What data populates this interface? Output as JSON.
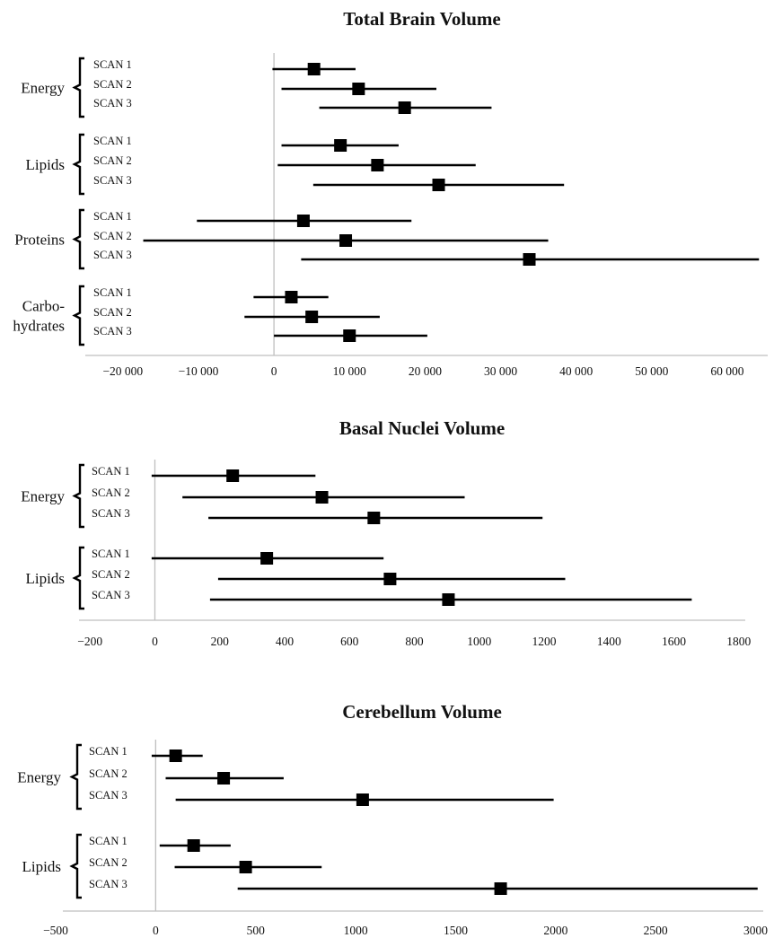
{
  "chart_data": [
    {
      "type": "forest",
      "title": "Total Brain Volume",
      "xlim": [
        -22000,
        65000
      ],
      "ticks": [
        -20000,
        -10000,
        0,
        10000,
        20000,
        30000,
        40000,
        50000,
        60000
      ],
      "tick_labels": [
        "−20 000",
        "−10 000",
        "0",
        "10 000",
        "20 000",
        "30 000",
        "40 000",
        "50 000",
        "60 000"
      ],
      "groups": [
        {
          "label_lines": [
            "Energy"
          ],
          "rows": [
            {
              "label": "SCAN 1",
              "estimate": 5300,
              "lower": -200,
              "upper": 10800
            },
            {
              "label": "SCAN 2",
              "estimate": 11200,
              "lower": 1000,
              "upper": 21500
            },
            {
              "label": "SCAN 3",
              "estimate": 17300,
              "lower": 6000,
              "upper": 28800
            }
          ]
        },
        {
          "label_lines": [
            "Lipids"
          ],
          "rows": [
            {
              "label": "SCAN 1",
              "estimate": 8800,
              "lower": 1000,
              "upper": 16500
            },
            {
              "label": "SCAN 2",
              "estimate": 13700,
              "lower": 500,
              "upper": 26700
            },
            {
              "label": "SCAN 3",
              "estimate": 21800,
              "lower": 5200,
              "upper": 38400
            }
          ]
        },
        {
          "label_lines": [
            "Proteins"
          ],
          "rows": [
            {
              "label": "SCAN 1",
              "estimate": 3900,
              "lower": -10200,
              "upper": 18200
            },
            {
              "label": "SCAN 2",
              "estimate": 9500,
              "lower": -17300,
              "upper": 36300
            },
            {
              "label": "SCAN 3",
              "estimate": 33800,
              "lower": 3600,
              "upper": 64200
            }
          ]
        },
        {
          "label_lines": [
            "Carbo-",
            "hydrates"
          ],
          "rows": [
            {
              "label": "SCAN 1",
              "estimate": 2300,
              "lower": -2700,
              "upper": 7200
            },
            {
              "label": "SCAN 2",
              "estimate": 5000,
              "lower": -3900,
              "upper": 14000
            },
            {
              "label": "SCAN 3",
              "estimate": 10000,
              "lower": 0,
              "upper": 20300
            }
          ]
        }
      ]
    },
    {
      "type": "forest",
      "title": "Basal Nuclei Volume",
      "xlim": [
        -220,
        1820
      ],
      "ticks": [
        -200,
        0,
        200,
        400,
        600,
        800,
        1000,
        1200,
        1400,
        1600,
        1800
      ],
      "tick_labels": [
        "−200",
        "0",
        "200",
        "400",
        "600",
        "800",
        "1000",
        "1200",
        "1400",
        "1600",
        "1800"
      ],
      "groups": [
        {
          "label_lines": [
            "Energy"
          ],
          "rows": [
            {
              "label": "SCAN 1",
              "estimate": 240,
              "lower": -10,
              "upper": 495
            },
            {
              "label": "SCAN 2",
              "estimate": 515,
              "lower": 85,
              "upper": 955
            },
            {
              "label": "SCAN 3",
              "estimate": 675,
              "lower": 165,
              "upper": 1195
            }
          ]
        },
        {
          "label_lines": [
            "Lipids"
          ],
          "rows": [
            {
              "label": "SCAN 1",
              "estimate": 345,
              "lower": -10,
              "upper": 705
            },
            {
              "label": "SCAN 2",
              "estimate": 725,
              "lower": 195,
              "upper": 1265
            },
            {
              "label": "SCAN 3",
              "estimate": 905,
              "lower": 170,
              "upper": 1655
            }
          ]
        }
      ]
    },
    {
      "type": "forest",
      "title": "Cerebellum Volume",
      "xlim": [
        -500,
        3020
      ],
      "ticks": [
        -500,
        0,
        500,
        1000,
        1500,
        2000,
        2500,
        3000
      ],
      "tick_labels": [
        "−500",
        "0",
        "500",
        "1000",
        "1500",
        "2000",
        "2500",
        "3000"
      ],
      "groups": [
        {
          "label_lines": [
            "Energy"
          ],
          "rows": [
            {
              "label": "SCAN 1",
              "estimate": 100,
              "lower": -20,
              "upper": 235
            },
            {
              "label": "SCAN 2",
              "estimate": 340,
              "lower": 50,
              "upper": 640
            },
            {
              "label": "SCAN 3",
              "estimate": 1035,
              "lower": 100,
              "upper": 1990
            }
          ]
        },
        {
          "label_lines": [
            "Lipids"
          ],
          "rows": [
            {
              "label": "SCAN 1",
              "estimate": 190,
              "lower": 20,
              "upper": 375
            },
            {
              "label": "SCAN 2",
              "estimate": 450,
              "lower": 95,
              "upper": 830
            },
            {
              "label": "SCAN 3",
              "estimate": 1725,
              "lower": 410,
              "upper": 3010
            }
          ]
        }
      ]
    }
  ]
}
